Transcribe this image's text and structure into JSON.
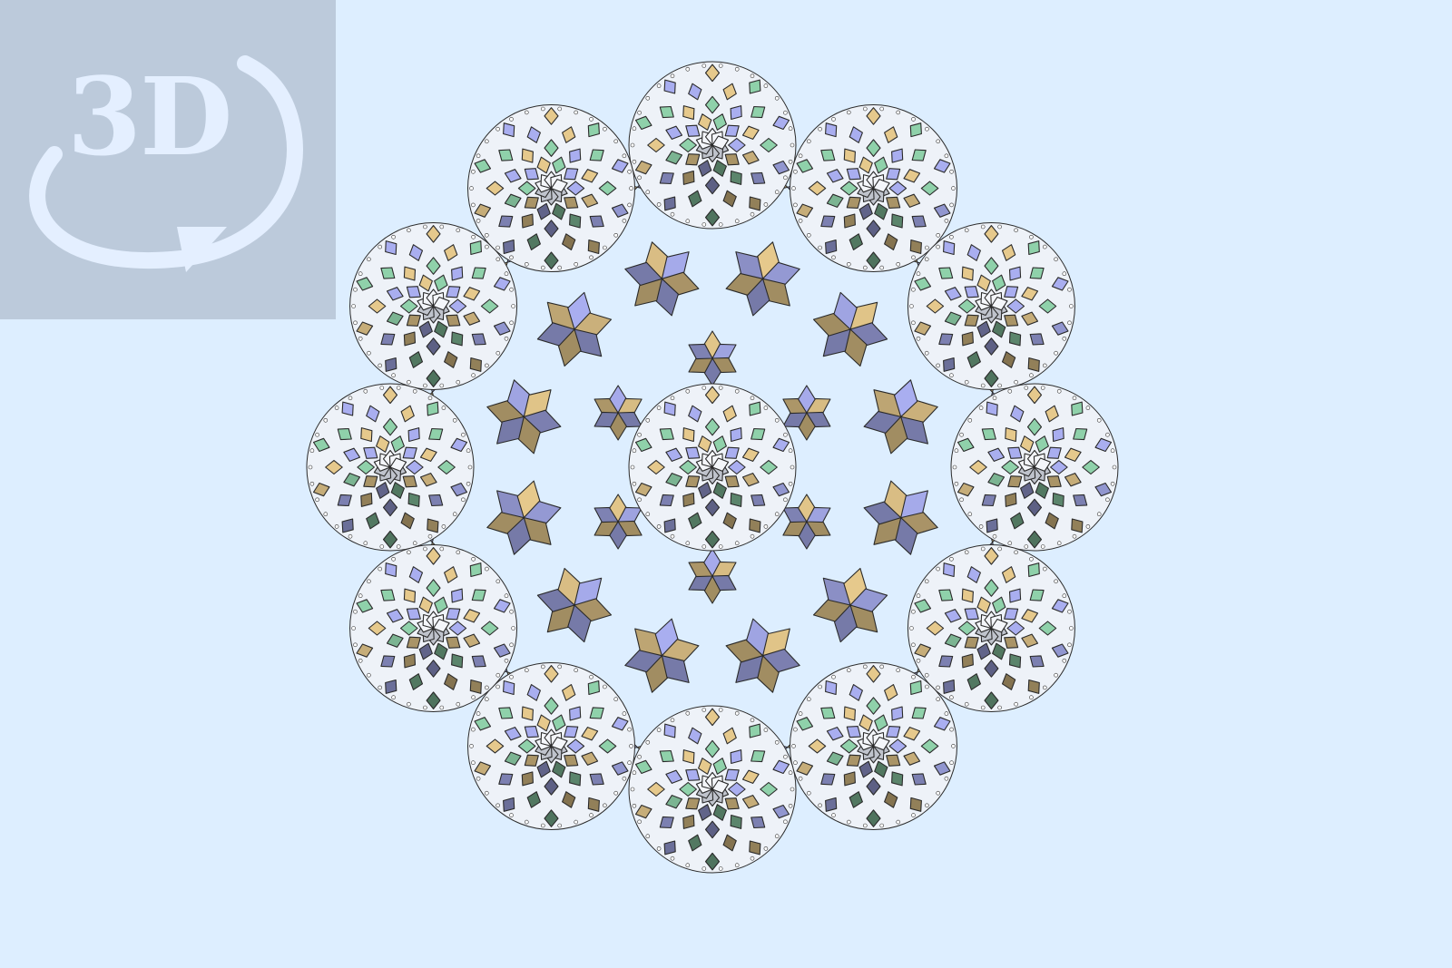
{
  "badge": {
    "text": "3D",
    "icon": "rotate-3d-icon"
  },
  "colors": {
    "background": "#ddeeff",
    "badge_background": "#bccadb",
    "badge_foreground": "#e4efff",
    "tile_tan": "#e6c98c",
    "tile_green": "#8fd1aa",
    "tile_lilac": "#a9aef0",
    "tile_dark": "#4f5566",
    "tile_white": "#f4f6fa",
    "edge": "#2a2a2a"
  },
  "scene": {
    "description_free": true,
    "outer_ring_count": 12,
    "inner_rosette_count": 12
  }
}
